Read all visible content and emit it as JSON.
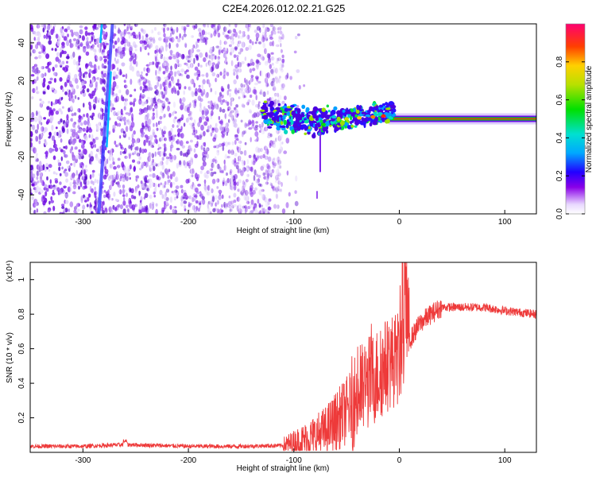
{
  "page": {
    "title": "C2E4.2026.012.02.21.G25"
  },
  "colors": {
    "snr_line": "#ee3a3a",
    "axis": "#000000",
    "background": "#ffffff",
    "spectrum_base": "#6a00d8"
  },
  "chart_data": [
    {
      "type": "heatmap",
      "title": "C2E4.2026.012.02.21.G25",
      "xlabel": "Height of straight line (km)",
      "ylabel": "Frequency (Hz)",
      "xlim": [
        -350,
        130
      ],
      "ylim": [
        -50,
        50
      ],
      "x_ticks": [
        -300,
        -200,
        -100,
        0,
        100
      ],
      "x_tick_labels": [
        "-300",
        "-200",
        "-100",
        "0",
        "100"
      ],
      "y_ticks": [
        -40,
        -20,
        0,
        20,
        40
      ],
      "y_tick_labels": [
        "-40",
        "-20",
        "0",
        "20",
        "40"
      ],
      "colorbar": {
        "label": "Normalized spectral amplitude",
        "range": [
          0,
          1
        ],
        "ticks": [
          0.0,
          0.2,
          0.4,
          0.6,
          0.8
        ],
        "tick_labels": [
          "0.0",
          "0.2",
          "0.4",
          "0.6",
          "0.8"
        ]
      },
      "features": {
        "noise_region_x": [
          -350,
          -110
        ],
        "diagonal_streak": {
          "x_start": -285,
          "freq_start": -50,
          "x_end": -278,
          "freq_end": 50
        },
        "signal_band": {
          "x_start": -130,
          "x_end": 130,
          "freq_center": 0
        }
      }
    },
    {
      "type": "line",
      "xlabel": "Height of straight line (km)",
      "ylabel": "SNR (10 * v/v)",
      "y_scale_label": "(x10⁴)",
      "xlim": [
        -350,
        130
      ],
      "ylim": [
        0,
        1.1
      ],
      "x_ticks": [
        -300,
        -200,
        -100,
        0,
        100
      ],
      "x_tick_labels": [
        "-300",
        "-200",
        "-100",
        "0",
        "100"
      ],
      "y_ticks": [
        0.2,
        0.4,
        0.6,
        0.8,
        1.0
      ],
      "y_tick_labels": [
        "0.2",
        "0.4",
        "0.6",
        "0.8",
        "1"
      ],
      "series": [
        {
          "name": "SNR",
          "x": [
            -350,
            -300,
            -260,
            -200,
            -150,
            -110,
            -90,
            -70,
            -60,
            -50,
            -40,
            -30,
            -20,
            -10,
            0,
            3,
            10,
            20,
            30,
            40,
            60,
            80,
            100,
            130
          ],
          "values": [
            0.035,
            0.035,
            0.045,
            0.035,
            0.035,
            0.04,
            0.07,
            0.12,
            0.18,
            0.24,
            0.32,
            0.4,
            0.45,
            0.52,
            0.55,
            1.1,
            0.65,
            0.75,
            0.8,
            0.84,
            0.84,
            0.84,
            0.82,
            0.8
          ]
        }
      ]
    }
  ]
}
